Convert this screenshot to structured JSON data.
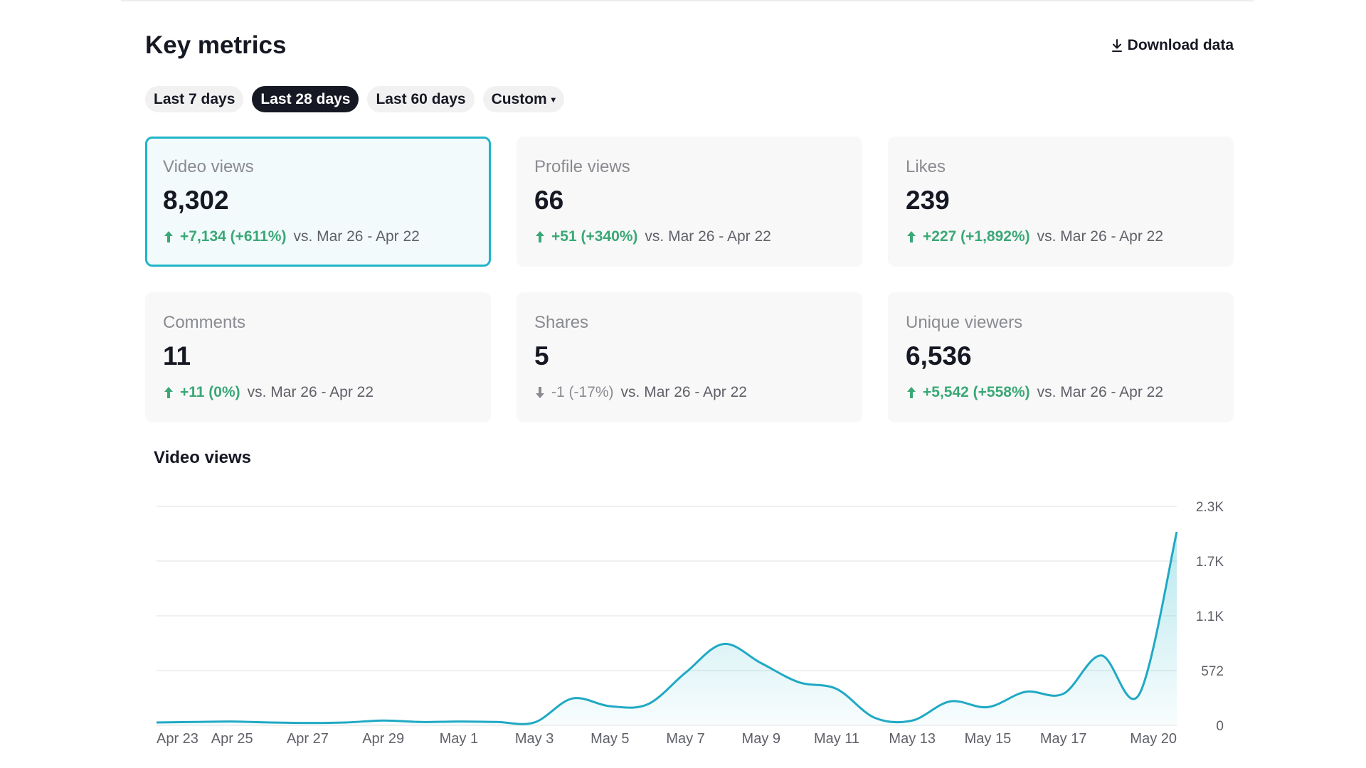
{
  "header": {
    "title": "Key metrics",
    "download_label": "Download data",
    "download_icon": "download-icon"
  },
  "filters": [
    {
      "label": "Last 7 days",
      "active": false
    },
    {
      "label": "Last 28 days",
      "active": true
    },
    {
      "label": "Last 60 days",
      "active": false
    },
    {
      "label": "Custom",
      "active": false,
      "caret": "▾"
    }
  ],
  "cards": [
    {
      "label": "Video views",
      "value": "8,302",
      "change": "+7,134 (+611%)",
      "trend": "up",
      "compare": "vs.  Mar 26 - Apr 22",
      "selected": true
    },
    {
      "label": "Profile views",
      "value": "66",
      "change": "+51 (+340%)",
      "trend": "up",
      "compare": "vs.  Mar 26 - Apr 22",
      "selected": false
    },
    {
      "label": "Likes",
      "value": "239",
      "change": "+227 (+1,892%)",
      "trend": "up",
      "compare": "vs.  Mar 26 - Apr 22",
      "selected": false
    },
    {
      "label": "Comments",
      "value": "11",
      "change": "+11 (0%)",
      "trend": "up",
      "compare": "vs.  Mar 26 - Apr 22",
      "selected": false
    },
    {
      "label": "Shares",
      "value": "5",
      "change": "-1 (-17%)",
      "trend": "down",
      "compare": "vs.  Mar 26 - Apr 22",
      "selected": false
    },
    {
      "label": "Unique viewers",
      "value": "6,536",
      "change": "+5,542 (+558%)",
      "trend": "up",
      "compare": "vs.  Mar 26 - Apr 22",
      "selected": false
    }
  ],
  "colors": {
    "accent": "#20b5c8",
    "up": "#3aa876",
    "down": "#8a8b91",
    "line": "#1fa9c4"
  },
  "chart_data": {
    "type": "area",
    "title": "Video views",
    "y_tick_labels": [
      "0",
      "572",
      "1.1K",
      "1.7K",
      "2.3K"
    ],
    "y_tick_values": [
      0,
      572,
      1144,
      1716,
      2288
    ],
    "ylim": [
      0,
      2288
    ],
    "x_tick_labels": [
      "Apr 23",
      "Apr 25",
      "Apr 27",
      "Apr 29",
      "May 1",
      "May 3",
      "May 5",
      "May 7",
      "May 9",
      "May 11",
      "May 13",
      "May 15",
      "May 17",
      "May 20"
    ],
    "x_tick_indices": [
      0,
      2,
      4,
      6,
      8,
      10,
      12,
      14,
      16,
      18,
      20,
      22,
      24,
      27
    ],
    "x": [
      "Apr 23",
      "Apr 24",
      "Apr 25",
      "Apr 26",
      "Apr 27",
      "Apr 28",
      "Apr 29",
      "Apr 30",
      "May 1",
      "May 2",
      "May 3",
      "May 4",
      "May 5",
      "May 6",
      "May 7",
      "May 8",
      "May 9",
      "May 10",
      "May 11",
      "May 12",
      "May 13",
      "May 14",
      "May 15",
      "May 16",
      "May 17",
      "May 18",
      "May 19",
      "May 20"
    ],
    "values": [
      30,
      35,
      40,
      30,
      25,
      30,
      50,
      35,
      40,
      35,
      30,
      280,
      200,
      220,
      550,
      850,
      650,
      450,
      380,
      80,
      50,
      250,
      190,
      350,
      330,
      730,
      320,
      2020
    ],
    "grid": true,
    "legend": "none"
  }
}
